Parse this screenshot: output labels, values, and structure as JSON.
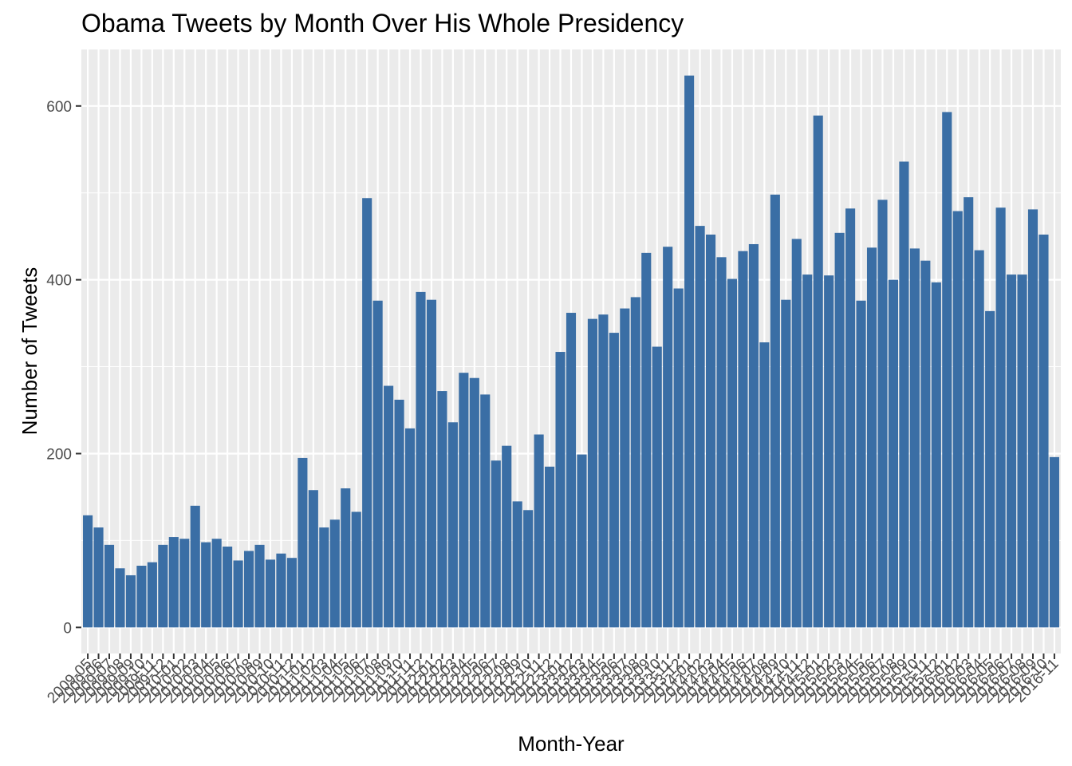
{
  "chart_data": {
    "type": "bar",
    "title": "Obama Tweets by Month Over His Whole Presidency",
    "xlabel": "Month-Year",
    "ylabel": "Number of Tweets",
    "ylim": [
      -30,
      665
    ],
    "yticks": [
      0,
      200,
      400,
      600
    ],
    "grid": true,
    "legend": "none",
    "bar_color": "#3A6EA5",
    "panel_color": "#EBEBEB",
    "grid_color": "#FFFFFF",
    "categories": [
      "2009-05",
      "2009-06",
      "2009-07",
      "2009-08",
      "2009-09",
      "2009-10",
      "2009-11",
      "2009-12",
      "2010-01",
      "2010-02",
      "2010-03",
      "2010-04",
      "2010-05",
      "2010-06",
      "2010-07",
      "2010-08",
      "2010-09",
      "2010-10",
      "2010-11",
      "2010-12",
      "2011-01",
      "2011-02",
      "2011-03",
      "2011-04",
      "2011-05",
      "2011-06",
      "2011-07",
      "2011-08",
      "2011-09",
      "2011-10",
      "2011-11",
      "2011-12",
      "2012-01",
      "2012-02",
      "2012-03",
      "2012-04",
      "2012-05",
      "2012-06",
      "2012-07",
      "2012-08",
      "2012-09",
      "2012-10",
      "2012-11",
      "2012-12",
      "2013-01",
      "2013-02",
      "2013-03",
      "2013-04",
      "2013-05",
      "2013-06",
      "2013-07",
      "2013-08",
      "2013-09",
      "2013-10",
      "2013-11",
      "2013-12",
      "2014-01",
      "2014-02",
      "2014-03",
      "2014-04",
      "2014-05",
      "2014-06",
      "2014-07",
      "2014-08",
      "2014-09",
      "2014-10",
      "2014-11",
      "2014-12",
      "2015-01",
      "2015-02",
      "2015-03",
      "2015-04",
      "2015-05",
      "2015-06",
      "2015-07",
      "2015-08",
      "2015-09",
      "2015-10",
      "2015-11",
      "2015-12",
      "2016-01",
      "2016-02",
      "2016-03",
      "2016-04",
      "2016-05",
      "2016-06",
      "2016-07",
      "2016-08",
      "2016-09",
      "2016-10",
      "2016-11"
    ],
    "values": [
      129,
      115,
      95,
      68,
      60,
      71,
      75,
      95,
      104,
      102,
      140,
      98,
      102,
      93,
      77,
      88,
      95,
      78,
      85,
      80,
      195,
      158,
      115,
      124,
      160,
      133,
      494,
      376,
      278,
      262,
      229,
      386,
      377,
      272,
      236,
      293,
      287,
      268,
      192,
      209,
      145,
      135,
      222,
      185,
      317,
      362,
      199,
      355,
      360,
      339,
      367,
      380,
      431,
      323,
      438,
      390,
      635,
      462,
      452,
      426,
      401,
      433,
      441,
      328,
      498,
      377,
      447,
      406,
      589,
      405,
      454,
      482,
      376,
      437,
      492,
      400,
      536,
      436,
      422,
      397,
      593,
      479,
      495,
      434,
      364,
      483,
      406,
      406,
      481,
      452,
      196
    ]
  }
}
